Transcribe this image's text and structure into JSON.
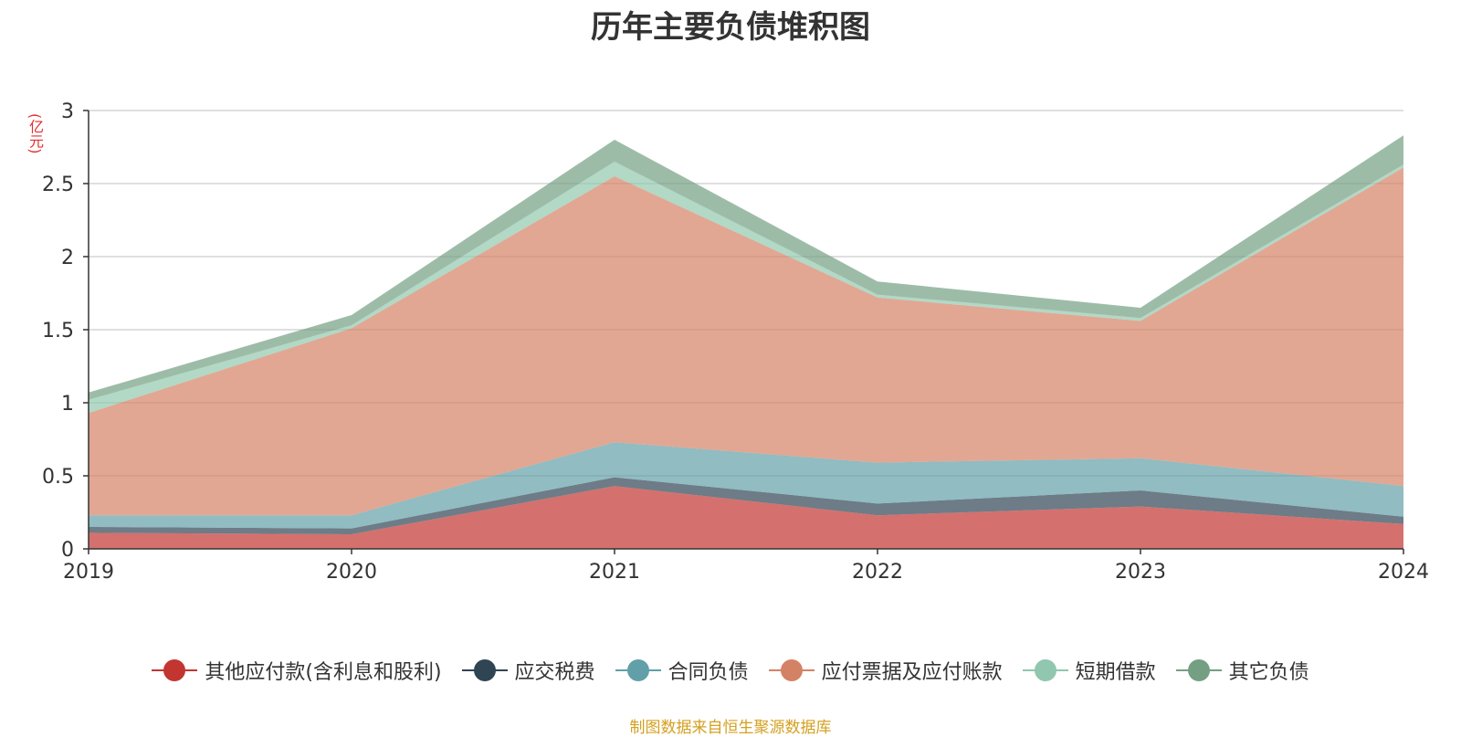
{
  "chart_data": {
    "type": "area",
    "stacked": true,
    "title": "历年主要负债堆积图",
    "ylabel": "(亿元)",
    "xlabel": "",
    "ylim": [
      0,
      3
    ],
    "yticks": [
      "0",
      "0.5",
      "1",
      "1.5",
      "2",
      "2.5",
      "3"
    ],
    "grid": true,
    "categories": [
      "2019",
      "2020",
      "2021",
      "2022",
      "2023",
      "2024"
    ],
    "legend_position": "bottom",
    "series": [
      {
        "name": "其他应付款(含利息和股利)",
        "color": "#c23531",
        "values": [
          0.11,
          0.1,
          0.43,
          0.23,
          0.29,
          0.17
        ]
      },
      {
        "name": "应交税费",
        "color": "#2f4554",
        "values": [
          0.04,
          0.04,
          0.06,
          0.08,
          0.11,
          0.05
        ]
      },
      {
        "name": "合同负债",
        "color": "#61a0a8",
        "values": [
          0.08,
          0.09,
          0.24,
          0.28,
          0.22,
          0.21
        ]
      },
      {
        "name": "应付票据及应付账款",
        "color": "#d48265",
        "values": [
          0.7,
          1.28,
          1.82,
          1.13,
          0.94,
          2.18
        ]
      },
      {
        "name": "短期借款",
        "color": "#91c7ae",
        "values": [
          0.09,
          0.02,
          0.1,
          0.02,
          0.02,
          0.02
        ]
      },
      {
        "name": "其它负债",
        "color": "#749f83",
        "values": [
          0.05,
          0.07,
          0.15,
          0.09,
          0.07,
          0.2
        ]
      }
    ]
  },
  "source_note": "制图数据来自恒生聚源数据库"
}
